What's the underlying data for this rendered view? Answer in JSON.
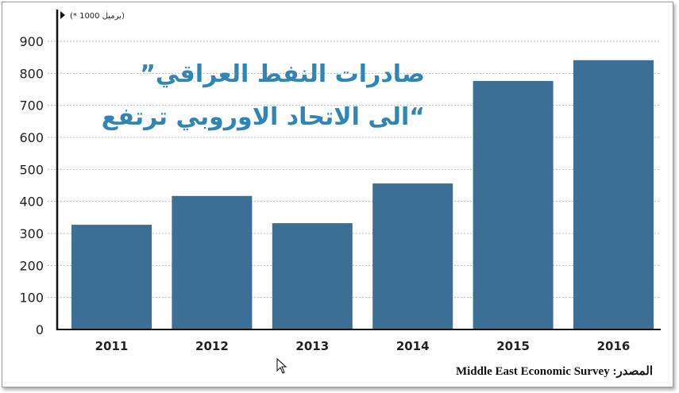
{
  "chart_data": {
    "type": "bar",
    "title_lines": [
      "”صادرات النفط العراقي",
      "الى الاتحاد الاوروبي ترتفع“"
    ],
    "unit_label": "(* 1000 برميل)",
    "categories": [
      "2011",
      "2012",
      "2013",
      "2014",
      "2015",
      "2016"
    ],
    "values": [
      327,
      417,
      332,
      456,
      776,
      841
    ],
    "ylim": [
      0,
      900
    ],
    "yticks": [
      "0",
      "100",
      "200",
      "300",
      "400",
      "500",
      "600",
      "700",
      "800",
      "900"
    ],
    "grid": "horizontal dotted",
    "bar_color": "#3b6f93",
    "title_color": "#2f86b5",
    "source": "Middle East Economic Survey :المصدر"
  }
}
